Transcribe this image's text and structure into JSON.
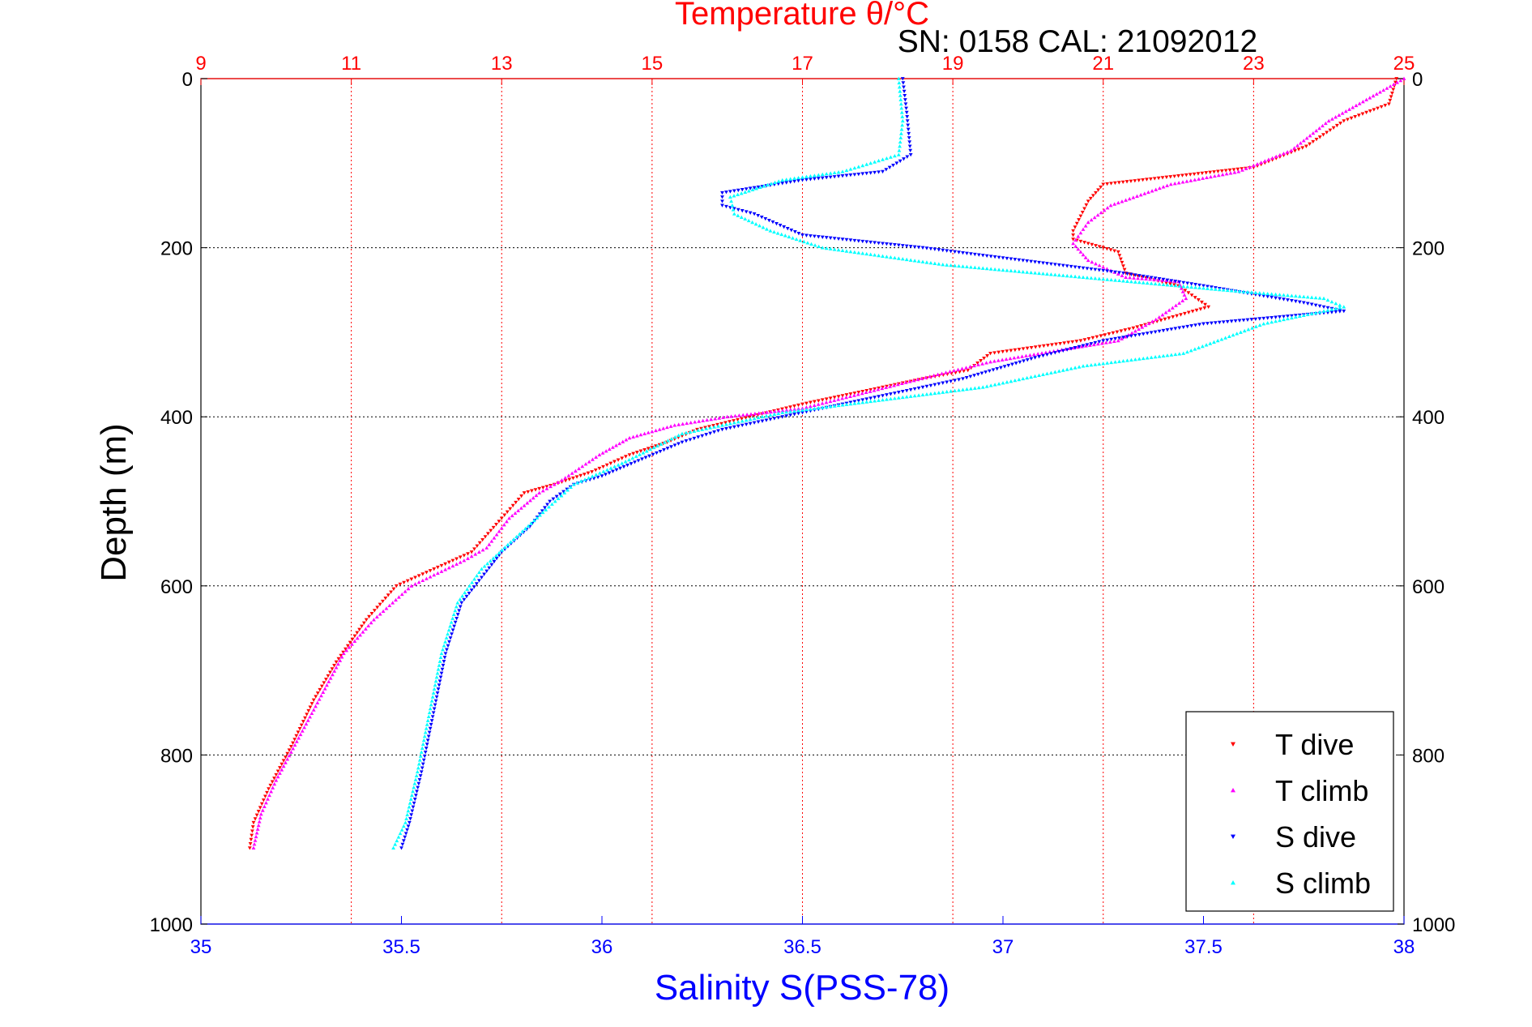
{
  "chart_data": {
    "type": "scatter",
    "title": "Temperature θ/°C",
    "subtitle": "SN: 0158  CAL: 21092012",
    "ylabel": "Depth (m)",
    "y_direction": "down",
    "xlabel_bottom": "Salinity S(PSS-78)",
    "xlabel_top": "",
    "ylim": [
      0,
      1000
    ],
    "y_ticks": [
      "0",
      "200",
      "400",
      "600",
      "800",
      "1000"
    ],
    "x_bottom": {
      "lim": [
        35,
        38
      ],
      "ticks": [
        "35",
        "35.5",
        "36",
        "36.5",
        "37",
        "37.5",
        "38"
      ]
    },
    "x_top": {
      "lim": [
        9,
        25
      ],
      "ticks": [
        "9",
        "11",
        "13",
        "15",
        "17",
        "19",
        "21",
        "23",
        "25"
      ]
    },
    "grid": true,
    "legend_position": "bottom-right",
    "colors": {
      "temperature_axis": "#ff0000",
      "salinity_axis": "#0000ff",
      "grid": "#000000",
      "axes": "#000000"
    },
    "series": [
      {
        "name": "T dive",
        "axis": "top",
        "color": "#ff0000",
        "marker": "triangle-down",
        "points": [
          [
            24.9,
            0
          ],
          [
            24.8,
            30
          ],
          [
            24.2,
            50
          ],
          [
            23.7,
            80
          ],
          [
            23.0,
            105
          ],
          [
            22.0,
            115
          ],
          [
            21.0,
            125
          ],
          [
            20.8,
            145
          ],
          [
            20.6,
            180
          ],
          [
            20.6,
            190
          ],
          [
            21.2,
            205
          ],
          [
            21.3,
            230
          ],
          [
            22.0,
            245
          ],
          [
            22.4,
            270
          ],
          [
            21.4,
            295
          ],
          [
            20.7,
            310
          ],
          [
            19.5,
            325
          ],
          [
            19.2,
            345
          ],
          [
            18.6,
            355
          ],
          [
            17.8,
            370
          ],
          [
            17.0,
            385
          ],
          [
            16.3,
            400
          ],
          [
            15.6,
            415
          ],
          [
            15.2,
            430
          ],
          [
            14.7,
            445
          ],
          [
            14.2,
            465
          ],
          [
            13.7,
            480
          ],
          [
            13.3,
            490
          ],
          [
            13.0,
            520
          ],
          [
            12.6,
            560
          ],
          [
            12.1,
            580
          ],
          [
            11.6,
            600
          ],
          [
            11.2,
            640
          ],
          [
            10.8,
            690
          ],
          [
            10.5,
            735
          ],
          [
            10.2,
            790
          ],
          [
            9.9,
            840
          ],
          [
            9.7,
            880
          ],
          [
            9.65,
            910
          ]
        ]
      },
      {
        "name": "T climb",
        "axis": "top",
        "color": "#ff00ff",
        "marker": "triangle-up",
        "points": [
          [
            25.0,
            0
          ],
          [
            24.5,
            25
          ],
          [
            24.0,
            50
          ],
          [
            23.5,
            85
          ],
          [
            22.8,
            110
          ],
          [
            21.9,
            125
          ],
          [
            21.1,
            150
          ],
          [
            20.8,
            170
          ],
          [
            20.6,
            195
          ],
          [
            20.8,
            215
          ],
          [
            21.3,
            235
          ],
          [
            22.0,
            240
          ],
          [
            22.1,
            260
          ],
          [
            21.7,
            285
          ],
          [
            21.2,
            310
          ],
          [
            20.5,
            320
          ],
          [
            19.5,
            335
          ],
          [
            18.8,
            350
          ],
          [
            17.9,
            370
          ],
          [
            17.0,
            390
          ],
          [
            16.0,
            400
          ],
          [
            15.3,
            410
          ],
          [
            14.7,
            425
          ],
          [
            14.3,
            445
          ],
          [
            13.8,
            475
          ],
          [
            13.5,
            490
          ],
          [
            13.1,
            520
          ],
          [
            12.8,
            555
          ],
          [
            12.5,
            570
          ],
          [
            11.8,
            600
          ],
          [
            11.3,
            640
          ],
          [
            10.9,
            680
          ],
          [
            10.6,
            730
          ],
          [
            10.3,
            780
          ],
          [
            10.0,
            830
          ],
          [
            9.8,
            870
          ],
          [
            9.7,
            910
          ]
        ]
      },
      {
        "name": "S dive",
        "axis": "bottom",
        "color": "#0000ff",
        "marker": "triangle-down",
        "points": [
          [
            36.75,
            0
          ],
          [
            36.76,
            40
          ],
          [
            36.77,
            90
          ],
          [
            36.7,
            110
          ],
          [
            36.5,
            120
          ],
          [
            36.3,
            135
          ],
          [
            36.3,
            150
          ],
          [
            36.38,
            160
          ],
          [
            36.5,
            185
          ],
          [
            36.8,
            200
          ],
          [
            37.05,
            215
          ],
          [
            37.3,
            230
          ],
          [
            37.5,
            245
          ],
          [
            37.75,
            265
          ],
          [
            37.85,
            275
          ],
          [
            37.5,
            290
          ],
          [
            37.25,
            310
          ],
          [
            37.08,
            330
          ],
          [
            36.9,
            355
          ],
          [
            36.65,
            380
          ],
          [
            36.45,
            400
          ],
          [
            36.3,
            415
          ],
          [
            36.2,
            430
          ],
          [
            36.1,
            450
          ],
          [
            36.0,
            470
          ],
          [
            35.93,
            480
          ],
          [
            35.87,
            500
          ],
          [
            35.82,
            530
          ],
          [
            35.75,
            560
          ],
          [
            35.7,
            590
          ],
          [
            35.65,
            620
          ],
          [
            35.61,
            680
          ],
          [
            35.58,
            750
          ],
          [
            35.55,
            820
          ],
          [
            35.52,
            880
          ],
          [
            35.5,
            910
          ]
        ]
      },
      {
        "name": "S climb",
        "axis": "bottom",
        "color": "#00ffff",
        "marker": "triangle-up",
        "points": [
          [
            36.74,
            0
          ],
          [
            36.75,
            50
          ],
          [
            36.74,
            90
          ],
          [
            36.6,
            110
          ],
          [
            36.45,
            120
          ],
          [
            36.32,
            140
          ],
          [
            36.33,
            160
          ],
          [
            36.42,
            180
          ],
          [
            36.55,
            200
          ],
          [
            36.85,
            220
          ],
          [
            37.2,
            235
          ],
          [
            37.55,
            250
          ],
          [
            37.8,
            260
          ],
          [
            37.85,
            270
          ],
          [
            37.65,
            290
          ],
          [
            37.45,
            325
          ],
          [
            37.2,
            340
          ],
          [
            36.95,
            365
          ],
          [
            36.7,
            380
          ],
          [
            36.45,
            395
          ],
          [
            36.2,
            420
          ],
          [
            36.05,
            455
          ],
          [
            35.93,
            480
          ],
          [
            35.86,
            510
          ],
          [
            35.78,
            545
          ],
          [
            35.7,
            580
          ],
          [
            35.64,
            620
          ],
          [
            35.6,
            680
          ],
          [
            35.57,
            750
          ],
          [
            35.54,
            820
          ],
          [
            35.51,
            880
          ],
          [
            35.48,
            910
          ]
        ]
      }
    ]
  }
}
